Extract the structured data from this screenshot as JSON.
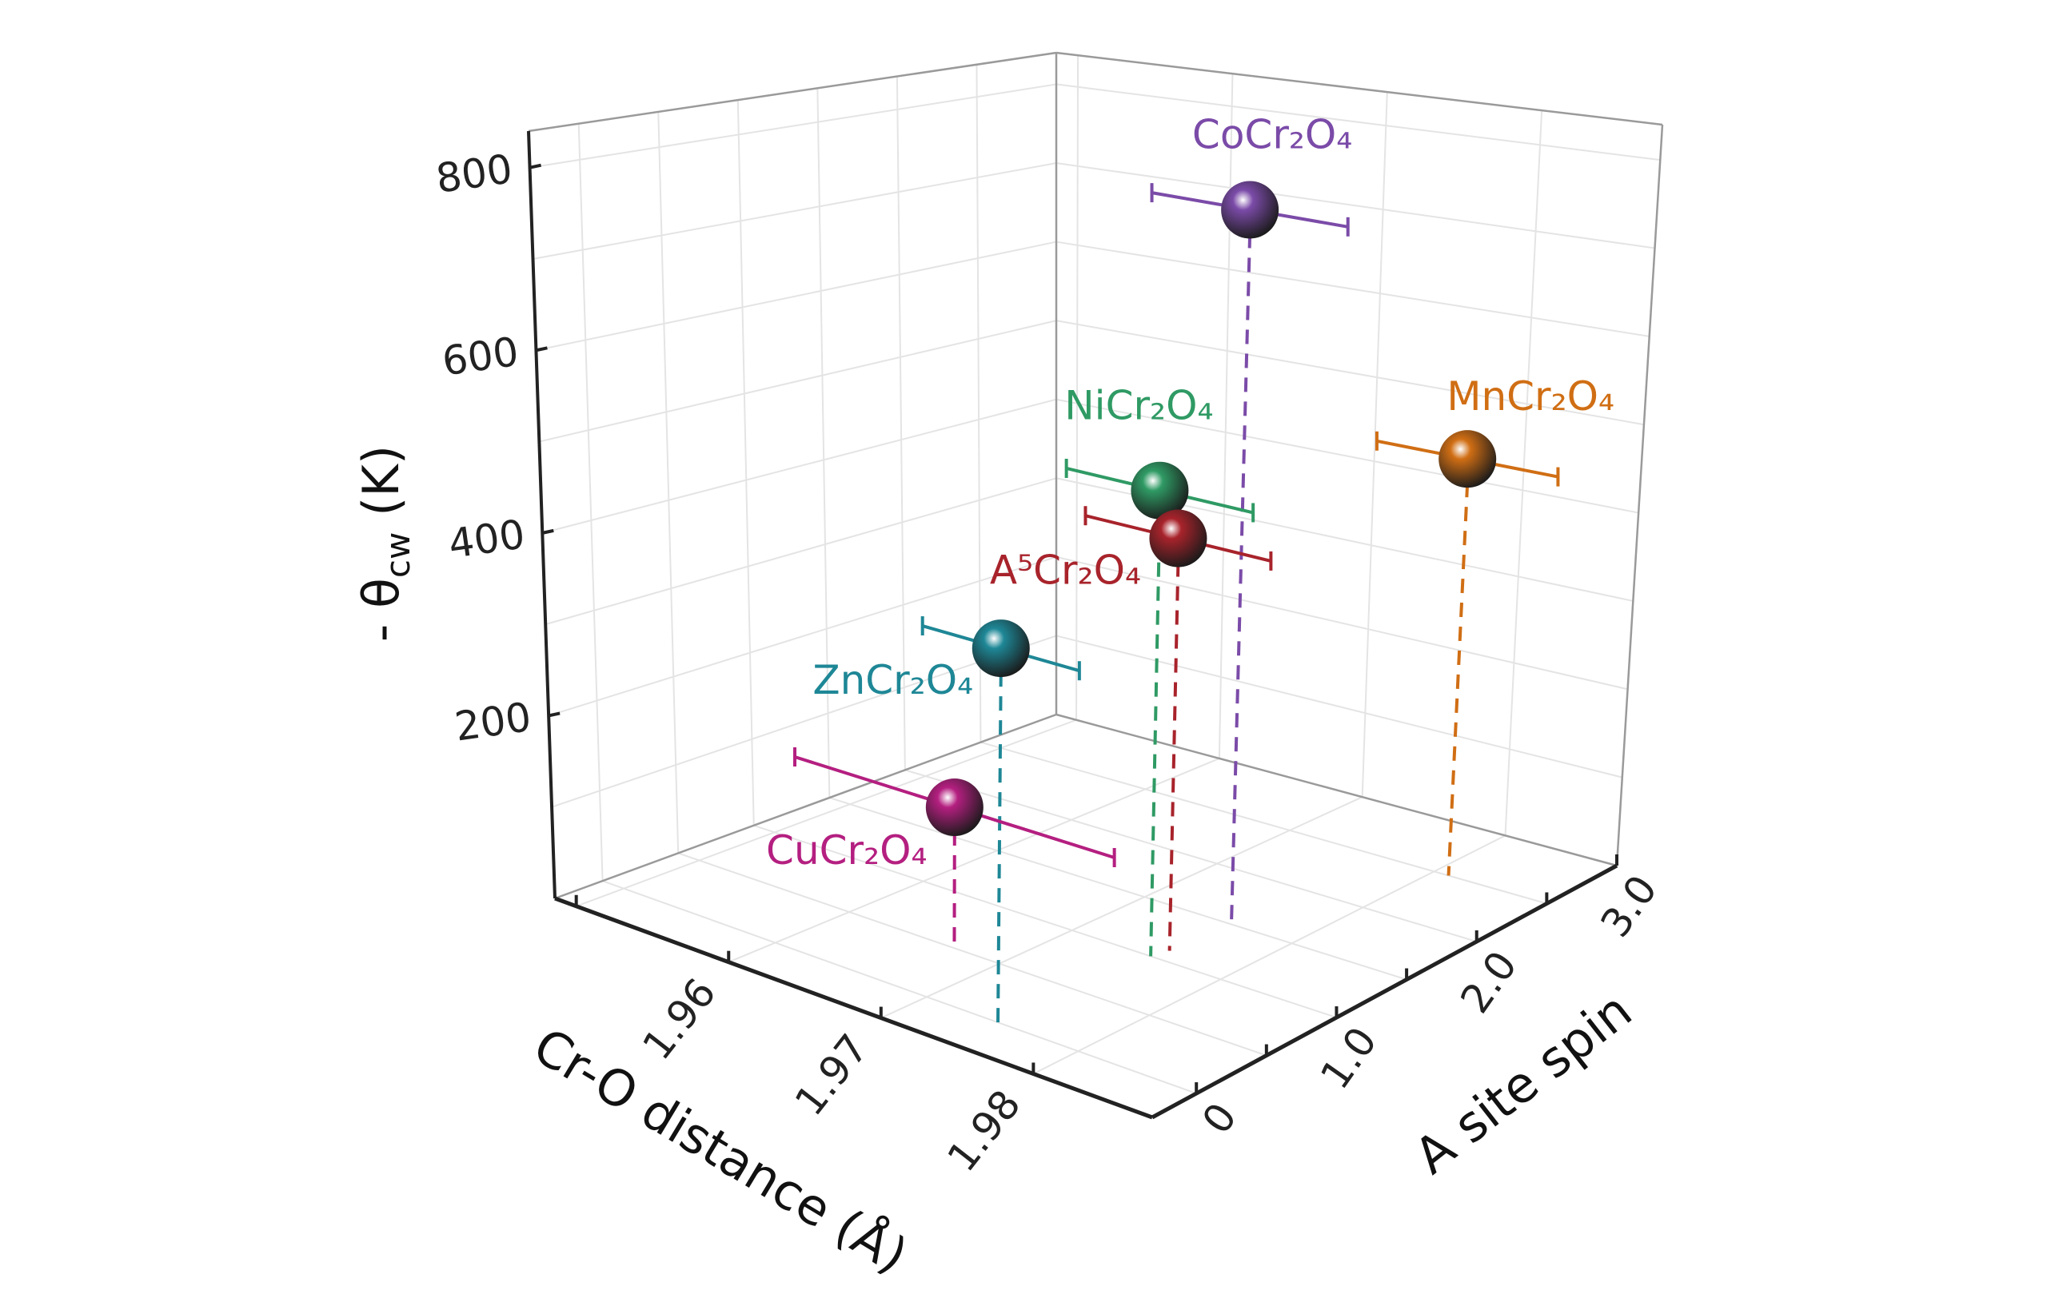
{
  "chart_data": {
    "type": "scatter3d",
    "title": "",
    "xlabel": "Cr-O distance (Å)",
    "ylabel": "A site spin",
    "zlabel": {
      "main": "- θ",
      "sub": "cw",
      "unit": " (K)"
    },
    "xlim": [
      1.9486,
      1.9878
    ],
    "ylim": [
      -0.315,
      3.0
    ],
    "zlim": [
      0,
      840
    ],
    "xticks": [
      1.96,
      1.97,
      1.98
    ],
    "xtick_labels": [
      "1.96",
      "1.97",
      "1.98"
    ],
    "yticks": [
      0,
      1.0,
      2.0,
      3.0
    ],
    "ytick_labels": [
      "0",
      "1.0",
      "2.0",
      "3.0"
    ],
    "zticks": [
      200,
      400,
      600,
      800
    ],
    "ztick_labels": [
      "200",
      "400",
      "600",
      "800"
    ],
    "grid": true,
    "points": [
      {
        "label": "CoCr₂O₄",
        "x": 1.9759,
        "y": 1.5,
        "z": 785,
        "xerr": 0.0062,
        "color": "#7b4ba8"
      },
      {
        "label": "NiCr₂O₄",
        "x": 1.9753,
        "y": 1.0,
        "z": 502,
        "xerr": 0.006,
        "color": "#2f9a64"
      },
      {
        "label": "MnCr₂O₄",
        "x": 1.981,
        "y": 2.5,
        "z": 471,
        "xerr": 0.006,
        "color": "#d06e14"
      },
      {
        "label": "A⁵Cr₂O₄",
        "x": 1.9756,
        "y": 1.1,
        "z": 446,
        "xerr": 0.006,
        "color": "#a8232b"
      },
      {
        "label": "ZnCr₂O₄",
        "x": 1.9747,
        "y": 0.0,
        "z": 388,
        "xerr": 0.005,
        "color": "#1e8796"
      },
      {
        "label": "CuCr₂O₄",
        "x": 1.967,
        "y": 0.5,
        "z": 152,
        "xerr": 0.0105,
        "color": "#b41f80"
      }
    ]
  }
}
